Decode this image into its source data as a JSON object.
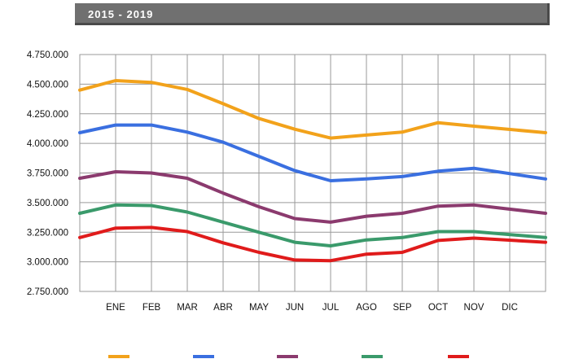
{
  "header": {
    "title": "2015 - 2019"
  },
  "chart_data": {
    "type": "line",
    "title": "2015 - 2019",
    "xlabel": "",
    "ylabel": "",
    "categories": [
      "",
      "ENE",
      "FEB",
      "MAR",
      "ABR",
      "MAY",
      "JUN",
      "JUL",
      "AGO",
      "SEP",
      "OCT",
      "NOV",
      "DIC"
    ],
    "ylim": [
      2750000,
      4750000
    ],
    "yticks": [
      2750000,
      3000000,
      3250000,
      3500000,
      3750000,
      4000000,
      4250000,
      4500000,
      4750000
    ],
    "ytick_labels": [
      "2.750.000",
      "3.000.000",
      "3.250.000",
      "3.500.000",
      "3.750.000",
      "4.000.000",
      "4.250.000",
      "4.500.000",
      "4.750.000"
    ],
    "grid": true,
    "legend": "bottom",
    "series": [
      {
        "color": "#f2a21b",
        "values": [
          4450000,
          4530000,
          4515000,
          4455000,
          4335000,
          4210000,
          4120000,
          4045000,
          4070000,
          4095000,
          4175000,
          4145000,
          4090000
        ]
      },
      {
        "color": "#3a6fe0",
        "values": [
          4090000,
          4155000,
          4155000,
          4095000,
          4010000,
          3890000,
          3770000,
          3685000,
          3700000,
          3720000,
          3765000,
          3790000,
          3700000
        ]
      },
      {
        "color": "#8b3a6e",
        "values": [
          3705000,
          3760000,
          3750000,
          3705000,
          3580000,
          3465000,
          3365000,
          3335000,
          3385000,
          3410000,
          3470000,
          3480000,
          3410000
        ]
      },
      {
        "color": "#3a9a6b",
        "values": [
          3410000,
          3480000,
          3475000,
          3420000,
          3335000,
          3250000,
          3165000,
          3135000,
          3185000,
          3205000,
          3255000,
          3255000,
          3205000
        ]
      },
      {
        "color": "#e01b1b",
        "values": [
          3205000,
          3285000,
          3290000,
          3255000,
          3160000,
          3080000,
          3015000,
          3010000,
          3065000,
          3080000,
          3180000,
          3200000,
          3165000
        ]
      }
    ]
  }
}
